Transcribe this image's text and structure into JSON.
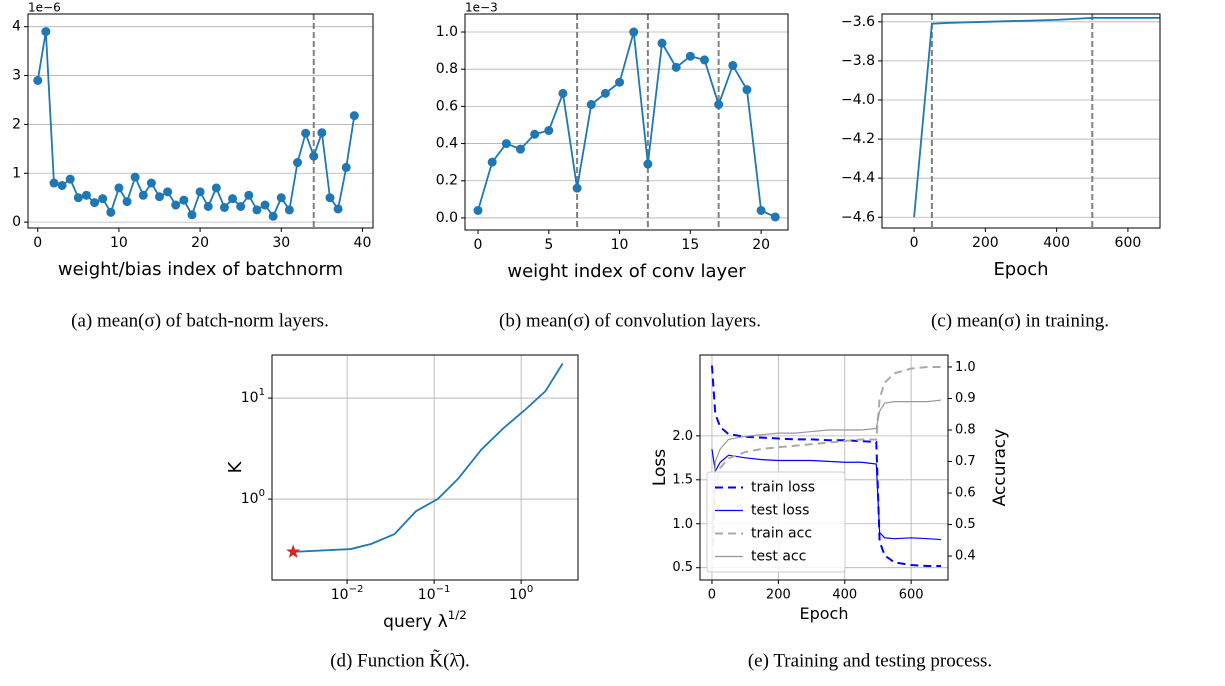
{
  "chart_data": [
    {
      "type": "line",
      "xlabel": "weight/bias index of batchnorm",
      "offset_label": "1e−6",
      "caption": "(a) mean(σ) of batch-norm layers.",
      "x": [
        0,
        1,
        2,
        3,
        4,
        5,
        6,
        7,
        8,
        9,
        10,
        11,
        12,
        13,
        14,
        15,
        16,
        17,
        18,
        19,
        20,
        21,
        22,
        23,
        24,
        25,
        26,
        27,
        28,
        29,
        30,
        31,
        32,
        33,
        34,
        35,
        36,
        37,
        38,
        39
      ],
      "series": [
        {
          "color": "#1f77b4",
          "marker": "o",
          "values": [
            2.9,
            3.9,
            0.8,
            0.75,
            0.88,
            0.5,
            0.55,
            0.4,
            0.48,
            0.2,
            0.7,
            0.42,
            0.92,
            0.55,
            0.8,
            0.52,
            0.62,
            0.35,
            0.45,
            0.15,
            0.62,
            0.32,
            0.7,
            0.3,
            0.48,
            0.32,
            0.55,
            0.25,
            0.35,
            0.12,
            0.5,
            0.25,
            1.22,
            1.82,
            1.35,
            1.83,
            0.5,
            0.27,
            1.12,
            2.18
          ]
        }
      ],
      "vlines": [
        34
      ],
      "xlim": [
        -1.2,
        41.3
      ],
      "xticks": [
        0,
        10,
        20,
        30,
        40
      ],
      "ylim": [
        -0.12,
        4.26
      ],
      "yticks": [
        0,
        1,
        2,
        3,
        4
      ],
      "grid": "y"
    },
    {
      "type": "line",
      "xlabel": "weight index of conv layer",
      "offset_label": "1e−3",
      "caption": "(b) mean(σ) of convolution layers.",
      "x": [
        0,
        1,
        2,
        3,
        4,
        5,
        6,
        7,
        8,
        9,
        10,
        11,
        12,
        13,
        14,
        15,
        16,
        17,
        18,
        19,
        20,
        21
      ],
      "series": [
        {
          "color": "#1f77b4",
          "marker": "o",
          "values": [
            0.04,
            0.3,
            0.4,
            0.37,
            0.45,
            0.47,
            0.67,
            0.16,
            0.61,
            0.67,
            0.73,
            1.0,
            0.29,
            0.94,
            0.81,
            0.87,
            0.85,
            0.61,
            0.82,
            0.69,
            0.04,
            0.005
          ]
        }
      ],
      "vlines": [
        7,
        12,
        17
      ],
      "xlim": [
        -0.92,
        21.9
      ],
      "xticks": [
        0,
        5,
        10,
        15,
        20
      ],
      "ylim": [
        -0.065,
        1.097
      ],
      "yticks": [
        {
          "value": 0,
          "label": "0.0"
        },
        0.2,
        0.4,
        0.6,
        0.8,
        {
          "value": 1,
          "label": "1.0"
        }
      ],
      "grid": "y"
    },
    {
      "type": "line",
      "xlabel": "Epoch",
      "caption": "(c) mean(σ) in training.",
      "x": [
        0,
        50,
        100,
        200,
        300,
        400,
        500,
        600,
        690
      ],
      "series": [
        {
          "color": "#1f77b4",
          "values": [
            -4.6,
            -3.61,
            -3.605,
            -3.6,
            -3.595,
            -3.59,
            -3.58,
            -3.58,
            -3.58
          ]
        }
      ],
      "vlines": [
        50,
        500
      ],
      "xlim": [
        -90,
        690
      ],
      "xticks": [
        0,
        200,
        400,
        600
      ],
      "ylim": [
        -4.655,
        -3.56
      ],
      "yticks": [
        {
          "value": -4.6,
          "label": "−4.6"
        },
        {
          "value": -4.4,
          "label": "−4.4"
        },
        {
          "value": -4.2,
          "label": "−4.2"
        },
        {
          "value": -4,
          "label": "−4.0"
        },
        {
          "value": -3.8,
          "label": "−3.8"
        },
        {
          "value": -3.6,
          "label": "−3.6"
        }
      ],
      "grid": "y"
    },
    {
      "type": "line",
      "xlabel": "query λ",
      "xlabel_sup": "1/2",
      "ylabel": "K",
      "caption": "(d) Function K̃(λ̄).",
      "xscale": "log",
      "yscale": "log",
      "x": [
        0.0024,
        0.011,
        0.019,
        0.035,
        0.062,
        0.11,
        0.19,
        0.35,
        0.62,
        1.1,
        1.9,
        3.0
      ],
      "series": [
        {
          "color": "#1f77b4",
          "values": [
            0.3,
            0.32,
            0.36,
            0.45,
            0.76,
            1.0,
            1.6,
            3.1,
            5.0,
            7.6,
            11.7,
            22
          ]
        }
      ],
      "highlight": {
        "x": 0.0024,
        "y": 0.3,
        "color": "#d62728"
      },
      "xlim": [
        0.00137,
        4.5
      ],
      "xticks": [
        {
          "value": 0.01,
          "label": "10",
          "exponent": "−2"
        },
        {
          "value": 0.1,
          "label": "10",
          "exponent": "−1"
        },
        {
          "value": 1,
          "label": "10",
          "exponent": "0"
        }
      ],
      "ylim": [
        0.158,
        26.7
      ],
      "yticks": [
        {
          "value": 1,
          "label": "10",
          "exponent": "0"
        },
        {
          "value": 10,
          "label": "10",
          "exponent": "1"
        }
      ],
      "grid": "both"
    },
    {
      "type": "line",
      "xlabel": "Epoch",
      "ylabel": "Loss",
      "ylabel_color": "#0000ff",
      "y2label": "Accuracy",
      "y2label_color": "#999999",
      "caption": "(e) Training and testing process.",
      "x": [
        0,
        10,
        25,
        50,
        100,
        150,
        200,
        250,
        300,
        350,
        400,
        450,
        495,
        505,
        520,
        550,
        600,
        650,
        690
      ],
      "series": [
        {
          "name": "train loss",
          "color": "#0000ff",
          "linestyle": "dashed",
          "linewidth": 2,
          "values": [
            2.8,
            2.25,
            2.1,
            2.02,
            1.99,
            1.98,
            1.97,
            1.96,
            1.96,
            1.95,
            1.95,
            1.94,
            1.93,
            0.8,
            0.64,
            0.56,
            0.53,
            0.52,
            0.52
          ]
        },
        {
          "name": "test loss",
          "color": "#0000ff",
          "linestyle": "solid",
          "linewidth": 1.2,
          "values": [
            1.85,
            1.6,
            1.7,
            1.78,
            1.75,
            1.73,
            1.72,
            1.72,
            1.72,
            1.71,
            1.7,
            1.7,
            1.68,
            0.9,
            0.84,
            0.83,
            0.84,
            0.83,
            0.82
          ]
        },
        {
          "name": "train acc",
          "color": "#aaaaaa",
          "linestyle": "dashed",
          "linewidth": 2,
          "axis": "y2",
          "values": [
            0.35,
            0.62,
            0.68,
            0.71,
            0.73,
            0.74,
            0.745,
            0.75,
            0.755,
            0.76,
            0.765,
            0.77,
            0.77,
            0.9,
            0.95,
            0.98,
            0.995,
            1.0,
            1.0
          ]
        },
        {
          "name": "test acc",
          "color": "#999999",
          "linestyle": "solid",
          "linewidth": 1.2,
          "axis": "y2",
          "values": [
            0.45,
            0.7,
            0.74,
            0.77,
            0.78,
            0.785,
            0.79,
            0.79,
            0.795,
            0.8,
            0.8,
            0.8,
            0.805,
            0.86,
            0.885,
            0.89,
            0.89,
            0.89,
            0.895
          ]
        }
      ],
      "xlim": [
        -36,
        711
      ],
      "xticks": [
        0,
        200,
        400,
        600
      ],
      "ylim": [
        0.36,
        2.92
      ],
      "yticks": [
        0.5,
        {
          "value": 1,
          "label": "1.0"
        },
        1.5,
        {
          "value": 2,
          "label": "2.0"
        }
      ],
      "y2lim": [
        0.324,
        1.038
      ],
      "y2ticks": [
        0.4,
        0.5,
        0.6,
        0.7,
        0.8,
        0.9,
        {
          "value": 1,
          "label": "1.0"
        }
      ],
      "grid": "both",
      "legend": "lower left"
    }
  ]
}
